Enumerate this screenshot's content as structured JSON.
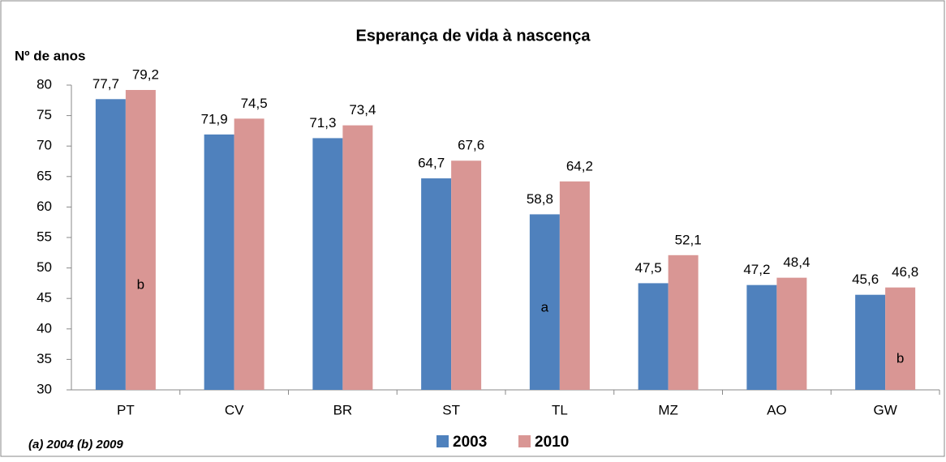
{
  "chart_data": {
    "type": "bar",
    "title": "Esperança de vida à nascença",
    "y_label": "Nº de anos",
    "categories": [
      "PT",
      "CV",
      "BR",
      "ST",
      "TL",
      "MZ",
      "AO",
      "GW"
    ],
    "series": [
      {
        "name": "2003",
        "color": "#4f81bd",
        "values": [
          77.7,
          71.9,
          71.3,
          64.7,
          58.8,
          47.5,
          47.2,
          45.6
        ],
        "value_labels": [
          "77,7",
          "71,9",
          "71,3",
          "64,7",
          "58,8",
          "47,5",
          "47,2",
          "45,6"
        ]
      },
      {
        "name": "2010",
        "color": "#d99694",
        "values": [
          79.2,
          74.5,
          73.4,
          67.6,
          64.2,
          52.1,
          48.4,
          46.8
        ],
        "value_labels": [
          "79,2",
          "74,5",
          "73,4",
          "67,6",
          "64,2",
          "52,1",
          "48,4",
          "46,8"
        ]
      }
    ],
    "annotations": [
      {
        "text": "b",
        "category": 0,
        "series": 1
      },
      {
        "text": "a",
        "category": 4,
        "series": 0
      },
      {
        "text": "b",
        "category": 7,
        "series": 1
      }
    ],
    "footnote": "(a) 2004  (b) 2009",
    "ylim": [
      30,
      80
    ],
    "yticks": [
      30,
      35,
      40,
      45,
      50,
      55,
      60,
      65,
      70,
      75,
      80
    ],
    "grid": false,
    "legend": "bottom"
  }
}
